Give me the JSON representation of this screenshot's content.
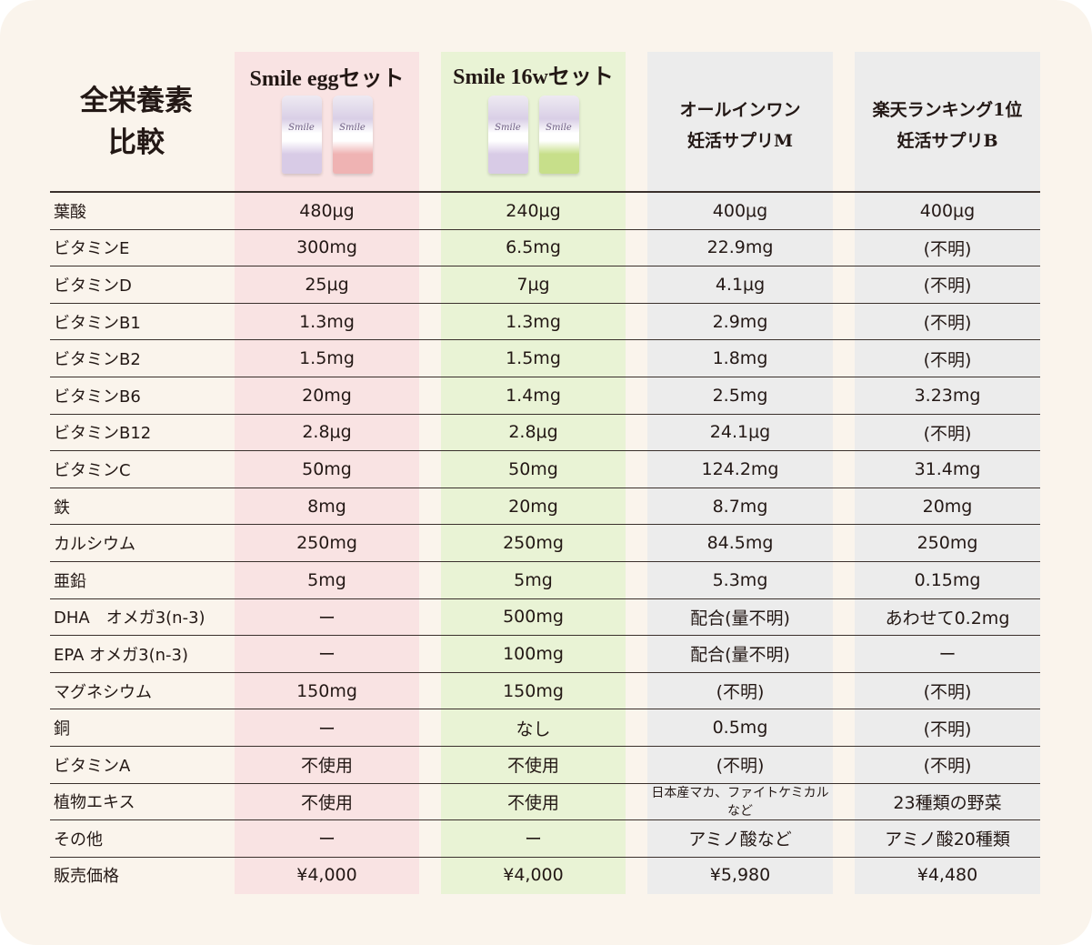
{
  "title_lines": [
    "全栄養素",
    "比較"
  ],
  "columns": [
    {
      "name": "Smile eggセット",
      "highlight": "#f9e3e3",
      "pack_colors": [
        "#d8cbe6",
        "#efb3b3"
      ],
      "pack_label": "Smile"
    },
    {
      "name": "Smile 16wセット",
      "highlight": "#e9f3d5",
      "pack_colors": [
        "#d8cbe6",
        "#c7df8a"
      ],
      "pack_label": "Smile"
    },
    {
      "name_lines": [
        "オールインワン",
        "妊活サプリM"
      ]
    },
    {
      "name_lines": [
        "楽天ランキング1位",
        "妊活サプリB"
      ]
    }
  ],
  "rows": [
    {
      "label": "葉酸",
      "values": [
        "480μg",
        "240μg",
        "400μg",
        "400μg"
      ]
    },
    {
      "label": "ビタミンE",
      "values": [
        "300mg",
        "6.5mg",
        "22.9mg",
        "(不明)"
      ]
    },
    {
      "label": "ビタミンD",
      "values": [
        "25μg",
        "7μg",
        "4.1μg",
        "(不明)"
      ]
    },
    {
      "label": "ビタミンB1",
      "values": [
        "1.3mg",
        "1.3mg",
        "2.9mg",
        "(不明)"
      ]
    },
    {
      "label": "ビタミンB2",
      "values": [
        "1.5mg",
        "1.5mg",
        "1.8mg",
        "(不明)"
      ]
    },
    {
      "label": "ビタミンB6",
      "values": [
        "20mg",
        "1.4mg",
        "2.5mg",
        "3.23mg"
      ]
    },
    {
      "label": "ビタミンB12",
      "values": [
        "2.8μg",
        "2.8μg",
        "24.1μg",
        "(不明)"
      ]
    },
    {
      "label": "ビタミンC",
      "values": [
        "50mg",
        "50mg",
        "124.2mg",
        "31.4mg"
      ]
    },
    {
      "label": "鉄",
      "values": [
        "8mg",
        "20mg",
        "8.7mg",
        "20mg"
      ]
    },
    {
      "label": "カルシウム",
      "values": [
        "250mg",
        "250mg",
        "84.5mg",
        "250mg"
      ]
    },
    {
      "label": "亜鉛",
      "values": [
        "5mg",
        "5mg",
        "5.3mg",
        "0.15mg"
      ]
    },
    {
      "label": "DHA　オメガ3(n-3)",
      "values": [
        "ー",
        "500mg",
        "配合(量不明)",
        "あわせて0.2mg"
      ]
    },
    {
      "label": "EPA オメガ3(n-3)",
      "values": [
        "ー",
        "100mg",
        "配合(量不明)",
        "ー"
      ]
    },
    {
      "label": "マグネシウム",
      "values": [
        "150mg",
        "150mg",
        "(不明)",
        "(不明)"
      ]
    },
    {
      "label": "銅",
      "values": [
        "ー",
        "なし",
        "0.5mg",
        "(不明)"
      ]
    },
    {
      "label": "ビタミンA",
      "values": [
        "不使用",
        "不使用",
        "(不明)",
        "(不明)"
      ]
    },
    {
      "label": "植物エキス",
      "values": [
        "不使用",
        "不使用",
        "日本産マカ、ファイトケミカルなど",
        "23種類の野菜"
      ]
    },
    {
      "label": "その他",
      "values": [
        "ー",
        "ー",
        "アミノ酸など",
        "アミノ酸20種類"
      ]
    },
    {
      "label": "販売価格",
      "values": [
        "¥4,000",
        "¥4,000",
        "¥5,980",
        "¥4,480"
      ]
    }
  ]
}
